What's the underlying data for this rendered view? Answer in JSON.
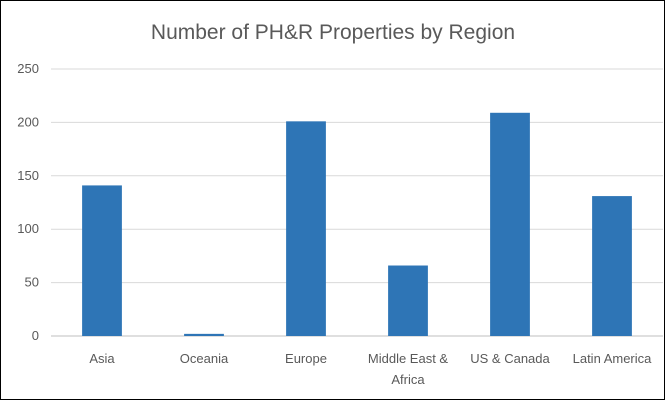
{
  "chart_data": {
    "type": "bar",
    "title": "Number of PH&R Properties by Region",
    "categories": [
      "Asia",
      "Oceania",
      "Europe",
      "Middle East & Africa",
      "US & Canada",
      "Latin  America"
    ],
    "category_label_lines": [
      [
        "Asia"
      ],
      [
        "Oceania"
      ],
      [
        "Europe"
      ],
      [
        "Middle East &",
        "Africa"
      ],
      [
        "US & Canada"
      ],
      [
        "Latin  America"
      ]
    ],
    "values": [
      141,
      2,
      201,
      66,
      209,
      131
    ],
    "ylim": [
      0,
      250
    ],
    "yticks": [
      0,
      50,
      100,
      150,
      200,
      250
    ],
    "xlabel": "",
    "ylabel": "",
    "grid": true,
    "legend": "none",
    "colors": {
      "bar": "#2E75B6",
      "grid": "#D9D9D9",
      "axis": "#BFBFBF",
      "text": "#595959"
    }
  }
}
